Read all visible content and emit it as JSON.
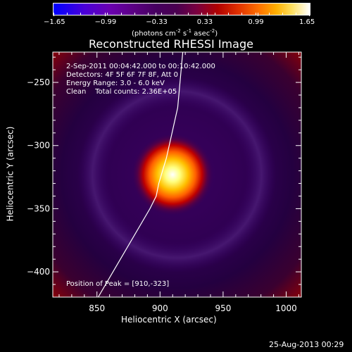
{
  "colorbar": {
    "ticks": [
      "-1.65",
      "-0.99",
      "-0.33",
      "0.33",
      "0.99",
      "1.65"
    ],
    "units_prefix": "(photons cm",
    "units_sup1": "-2",
    "units_mid": " s",
    "units_sup2": "-1",
    "units_mid2": " asec",
    "units_sup3": "-2",
    "units_suffix": ")"
  },
  "chart_data": {
    "type": "heatmap",
    "title": "Reconstructed RHESSI Image",
    "xlabel": "Heliocentric X (arcsec)",
    "ylabel": "Heliocentric Y (arcsec)",
    "xlim": [
      815,
      1012
    ],
    "ylim": [
      -420,
      -226
    ],
    "x_ticks": [
      850,
      900,
      950,
      1000
    ],
    "y_ticks": [
      -250,
      -300,
      -350,
      -400
    ],
    "color_range": [
      -1.65,
      1.65
    ],
    "colormap": "rhessi-stepped",
    "peak": [
      910,
      -323
    ],
    "limb_curve": [
      [
        851,
        -420
      ],
      [
        892,
        -350
      ],
      [
        897,
        -340
      ],
      [
        899,
        -330
      ],
      [
        902,
        -320
      ],
      [
        905,
        -310
      ],
      [
        914,
        -270
      ],
      [
        918,
        -226
      ]
    ],
    "annotations": [
      "2-Sep-2011 00:04:42.000 to 00:10:42.000",
      "Detectors: 4F 5F 6F 7F 8F, Att 0",
      "Energy Range: 3.0 - 6.0 keV",
      "Clean    Total counts: 2.36E+05",
      "Position of Peak = [910,-323]"
    ]
  },
  "timestamp": "25-Aug-2013 00:29"
}
